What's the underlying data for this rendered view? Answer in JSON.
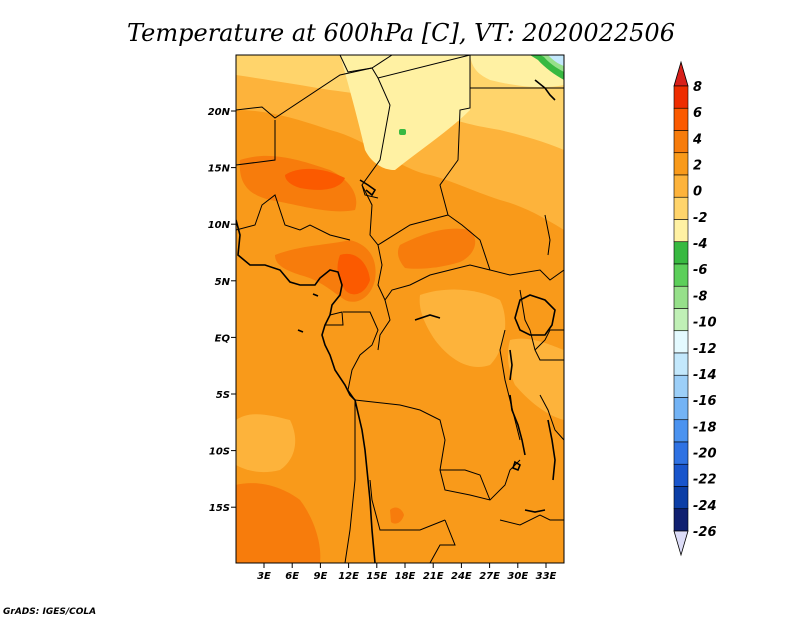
{
  "title": "Temperature at 600hPa [C], VT: 2020022506",
  "credit": "GrADS: IGES/COLA",
  "map": {
    "lon_ticks": [
      "3E",
      "6E",
      "9E",
      "12E",
      "15E",
      "18E",
      "21E",
      "24E",
      "27E",
      "30E",
      "33E"
    ],
    "lat_ticks": [
      "20N",
      "15N",
      "10N",
      "5N",
      "EQ",
      "5S",
      "10S",
      "15S"
    ]
  },
  "colorbar": {
    "labels": [
      "8",
      "6",
      "4",
      "2",
      "0",
      "-2",
      "-4",
      "-6",
      "-8",
      "-10",
      "-12",
      "-14",
      "-16",
      "-18",
      "-20",
      "-22",
      "-24",
      "-26"
    ],
    "colors": [
      "#ee2d00",
      "#fb5a00",
      "#f77c0c",
      "#f99a1a",
      "#fdb33b",
      "#ffd46b",
      "#fff1a3",
      "#38b941",
      "#5ccf5a",
      "#96e08a",
      "#c0f0b6",
      "#e4faff",
      "#c3e8fc",
      "#9ccff8",
      "#73b3f5",
      "#4b93f0",
      "#2f72e3",
      "#1955cc",
      "#0c3ea6",
      "#102070"
    ],
    "top_arrow_color": "#d8201a",
    "bottom_arrow_color": "#dcdcf7"
  }
}
